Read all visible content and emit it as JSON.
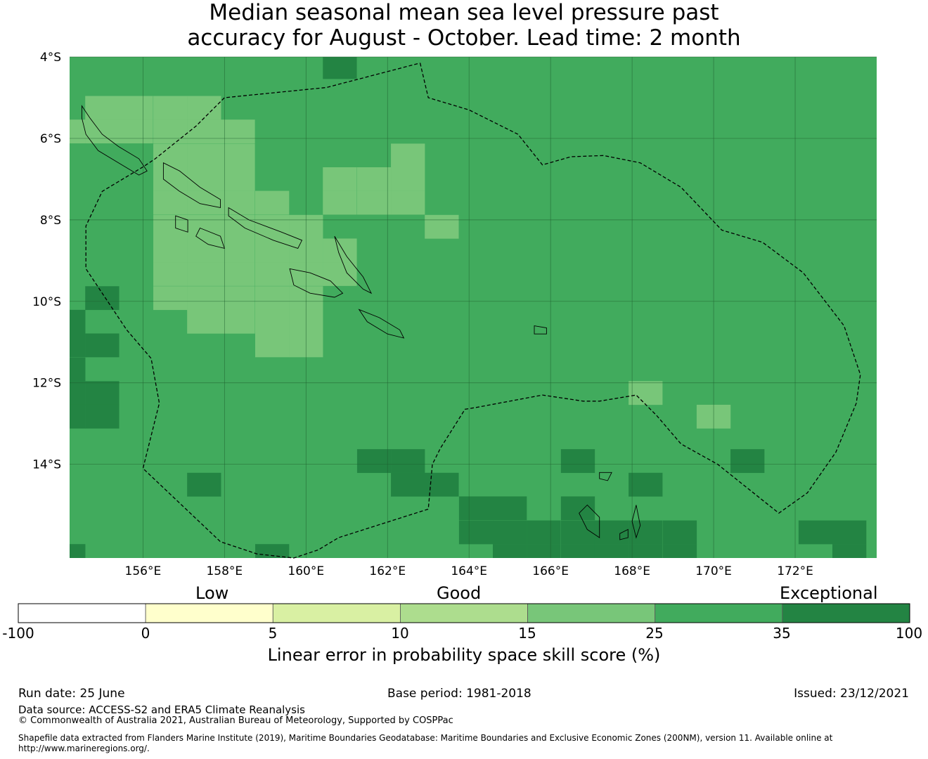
{
  "title": {
    "line1": "Median seasonal mean sea level pressure past",
    "line2": "accuracy for August - October. Lead time: 2 month"
  },
  "map": {
    "lat_labels": [
      "4°S",
      "6°S",
      "8°S",
      "10°S",
      "12°S",
      "14°S"
    ],
    "lon_labels": [
      "156°E",
      "158°E",
      "160°E",
      "162°E",
      "164°E",
      "166°E",
      "168°E",
      "170°E",
      "172°E"
    ],
    "lat_values": [
      -4,
      -6,
      -8,
      -10,
      -12,
      -14
    ],
    "lon_values": [
      156,
      158,
      160,
      162,
      164,
      166,
      168,
      170,
      172
    ],
    "extent": {
      "lon_min": 154.2,
      "lon_max": 174.0,
      "lat_max": -4.0,
      "lat_min": -16.3
    },
    "base_color": "#41ab5d",
    "category_colors": {
      "15-25": "#78c679",
      "25-35": "#41ab5d",
      "35-100": "#238443"
    },
    "cells_15_25": [
      [
        155,
        -5.25
      ],
      [
        155.83,
        -5.25
      ],
      [
        156.67,
        -5.25
      ],
      [
        157.5,
        -5.25
      ],
      [
        154.17,
        -5.83
      ],
      [
        155,
        -5.83
      ],
      [
        155.83,
        -5.83
      ],
      [
        156.67,
        -5.83
      ],
      [
        157.5,
        -5.83
      ],
      [
        158.33,
        -5.83
      ],
      [
        156.67,
        -6.42
      ],
      [
        157.5,
        -6.42
      ],
      [
        158.33,
        -6.42
      ],
      [
        162.5,
        -6.42
      ],
      [
        156.67,
        -7.0
      ],
      [
        157.5,
        -7.0
      ],
      [
        158.33,
        -7.0
      ],
      [
        160.83,
        -7.0
      ],
      [
        161.67,
        -7.0
      ],
      [
        162.5,
        -7.0
      ],
      [
        156.67,
        -7.58
      ],
      [
        157.5,
        -7.58
      ],
      [
        158.33,
        -7.58
      ],
      [
        159.17,
        -7.58
      ],
      [
        160.83,
        -7.58
      ],
      [
        161.67,
        -7.58
      ],
      [
        162.5,
        -7.58
      ],
      [
        156.67,
        -8.17
      ],
      [
        157.5,
        -8.17
      ],
      [
        158.33,
        -8.17
      ],
      [
        159.17,
        -8.17
      ],
      [
        160,
        -8.17
      ],
      [
        163.33,
        -8.17
      ],
      [
        156.67,
        -8.75
      ],
      [
        157.5,
        -8.75
      ],
      [
        158.33,
        -8.75
      ],
      [
        159.17,
        -8.75
      ],
      [
        160,
        -8.75
      ],
      [
        160.83,
        -8.75
      ],
      [
        156.67,
        -9.33
      ],
      [
        157.5,
        -9.33
      ],
      [
        158.33,
        -9.33
      ],
      [
        159.17,
        -9.33
      ],
      [
        160,
        -9.33
      ],
      [
        160.83,
        -9.33
      ],
      [
        156.67,
        -9.92
      ],
      [
        157.5,
        -9.92
      ],
      [
        158.33,
        -9.92
      ],
      [
        159.17,
        -9.92
      ],
      [
        160,
        -9.92
      ],
      [
        157.5,
        -10.5
      ],
      [
        158.33,
        -10.5
      ],
      [
        159.17,
        -10.5
      ],
      [
        160,
        -10.5
      ],
      [
        159.17,
        -11.08
      ],
      [
        160,
        -11.08
      ],
      [
        168.33,
        -12.25
      ],
      [
        170,
        -12.83
      ]
    ],
    "cells_35_100": [
      [
        160.83,
        -4.25
      ],
      [
        155,
        -9.92
      ],
      [
        154.17,
        -10.5
      ],
      [
        154.17,
        -11.08
      ],
      [
        155,
        -11.08
      ],
      [
        154.17,
        -11.67
      ],
      [
        154.17,
        -12.25
      ],
      [
        155,
        -12.25
      ],
      [
        154.17,
        -12.83
      ],
      [
        155,
        -12.83
      ],
      [
        161.67,
        -13.92
      ],
      [
        162.5,
        -13.92
      ],
      [
        162.5,
        -14.5
      ],
      [
        163.33,
        -14.5
      ],
      [
        157.5,
        -14.5
      ],
      [
        166.67,
        -13.92
      ],
      [
        168.33,
        -14.5
      ],
      [
        170.83,
        -13.92
      ],
      [
        164.17,
        -15.08
      ],
      [
        165,
        -15.08
      ],
      [
        166.67,
        -15.08
      ],
      [
        164.17,
        -15.67
      ],
      [
        165,
        -15.67
      ],
      [
        165.83,
        -15.67
      ],
      [
        166.67,
        -15.67
      ],
      [
        167.5,
        -15.67
      ],
      [
        168.33,
        -15.67
      ],
      [
        169.17,
        -15.67
      ],
      [
        172.5,
        -15.67
      ],
      [
        173.33,
        -15.67
      ],
      [
        165,
        -16.25
      ],
      [
        165.83,
        -16.25
      ],
      [
        166.67,
        -16.25
      ],
      [
        167.5,
        -16.25
      ],
      [
        168.33,
        -16.25
      ],
      [
        169.17,
        -16.25
      ],
      [
        173.33,
        -16.25
      ],
      [
        154.17,
        -16.25
      ],
      [
        159.17,
        -16.25
      ]
    ],
    "eez_boundary": [
      [
        162.8,
        -4.15
      ],
      [
        163.0,
        -5.0
      ],
      [
        164.0,
        -5.3
      ],
      [
        165.2,
        -5.9
      ],
      [
        165.8,
        -6.65
      ],
      [
        166.5,
        -6.45
      ],
      [
        167.3,
        -6.42
      ],
      [
        168.2,
        -6.6
      ],
      [
        169.2,
        -7.2
      ],
      [
        170.2,
        -8.25
      ],
      [
        171.2,
        -8.55
      ],
      [
        172.2,
        -9.3
      ],
      [
        173.2,
        -10.6
      ],
      [
        173.6,
        -11.8
      ],
      [
        173.5,
        -12.5
      ],
      [
        173.0,
        -13.7
      ],
      [
        172.3,
        -14.7
      ],
      [
        171.6,
        -15.2
      ],
      [
        170.1,
        -14.0
      ],
      [
        169.2,
        -13.5
      ],
      [
        168.6,
        -12.8
      ],
      [
        168.1,
        -12.3
      ],
      [
        167.2,
        -12.45
      ],
      [
        166.8,
        -12.45
      ],
      [
        165.8,
        -12.3
      ],
      [
        164.2,
        -12.6
      ],
      [
        163.9,
        -12.65
      ],
      [
        163.3,
        -13.6
      ],
      [
        163.1,
        -14.0
      ],
      [
        163.0,
        -15.1
      ],
      [
        160.8,
        -15.8
      ],
      [
        160.3,
        -16.1
      ],
      [
        159.7,
        -16.3
      ],
      [
        158.8,
        -16.2
      ],
      [
        157.9,
        -15.9
      ],
      [
        156.0,
        -14.1
      ],
      [
        156.4,
        -12.5
      ],
      [
        156.2,
        -11.4
      ],
      [
        155.6,
        -10.7
      ],
      [
        154.6,
        -9.2
      ],
      [
        154.6,
        -8.15
      ],
      [
        155.0,
        -7.3
      ],
      [
        156.0,
        -6.7
      ],
      [
        156.3,
        -6.5
      ],
      [
        157.3,
        -5.7
      ],
      [
        158.0,
        -5.0
      ],
      [
        160.5,
        -4.75
      ],
      [
        162.8,
        -4.15
      ]
    ],
    "islands": [
      [
        [
          154.5,
          -5.2
        ],
        [
          154.7,
          -5.5
        ],
        [
          155.0,
          -5.9
        ],
        [
          155.4,
          -6.2
        ],
        [
          155.9,
          -6.5
        ],
        [
          156.1,
          -6.8
        ],
        [
          155.9,
          -6.9
        ],
        [
          155.4,
          -6.6
        ],
        [
          154.9,
          -6.3
        ],
        [
          154.6,
          -5.9
        ],
        [
          154.5,
          -5.5
        ]
      ],
      [
        [
          156.5,
          -6.6
        ],
        [
          156.9,
          -6.8
        ],
        [
          157.4,
          -7.2
        ],
        [
          157.9,
          -7.5
        ],
        [
          157.9,
          -7.7
        ],
        [
          157.4,
          -7.6
        ],
        [
          156.9,
          -7.3
        ],
        [
          156.5,
          -7.0
        ]
      ],
      [
        [
          158.1,
          -7.7
        ],
        [
          158.6,
          -8.0
        ],
        [
          159.4,
          -8.3
        ],
        [
          159.9,
          -8.5
        ],
        [
          159.8,
          -8.7
        ],
        [
          159.2,
          -8.5
        ],
        [
          158.5,
          -8.2
        ],
        [
          158.1,
          -7.9
        ]
      ],
      [
        [
          160.7,
          -8.4
        ],
        [
          161.0,
          -8.9
        ],
        [
          161.4,
          -9.4
        ],
        [
          161.6,
          -9.8
        ],
        [
          161.4,
          -9.7
        ],
        [
          161.0,
          -9.3
        ],
        [
          160.8,
          -8.8
        ]
      ],
      [
        [
          159.6,
          -9.2
        ],
        [
          160.1,
          -9.3
        ],
        [
          160.6,
          -9.5
        ],
        [
          160.9,
          -9.8
        ],
        [
          160.7,
          -9.9
        ],
        [
          160.1,
          -9.8
        ],
        [
          159.7,
          -9.6
        ]
      ],
      [
        [
          161.3,
          -10.2
        ],
        [
          161.8,
          -10.4
        ],
        [
          162.3,
          -10.7
        ],
        [
          162.4,
          -10.9
        ],
        [
          162.0,
          -10.8
        ],
        [
          161.5,
          -10.5
        ]
      ],
      [
        [
          157.4,
          -8.2
        ],
        [
          157.9,
          -8.4
        ],
        [
          158.0,
          -8.7
        ],
        [
          157.6,
          -8.6
        ],
        [
          157.3,
          -8.4
        ]
      ],
      [
        [
          156.8,
          -7.9
        ],
        [
          157.1,
          -8.0
        ],
        [
          157.1,
          -8.3
        ],
        [
          156.8,
          -8.2
        ]
      ],
      [
        [
          165.6,
          -10.6
        ],
        [
          165.9,
          -10.65
        ],
        [
          165.9,
          -10.8
        ],
        [
          165.6,
          -10.8
        ]
      ],
      [
        [
          166.9,
          -15.0
        ],
        [
          167.2,
          -15.3
        ],
        [
          167.2,
          -15.8
        ],
        [
          166.9,
          -15.6
        ],
        [
          166.7,
          -15.2
        ]
      ],
      [
        [
          167.7,
          -15.7
        ],
        [
          167.9,
          -15.6
        ],
        [
          167.9,
          -15.8
        ],
        [
          167.7,
          -15.85
        ]
      ],
      [
        [
          168.1,
          -15.0
        ],
        [
          168.2,
          -15.5
        ],
        [
          168.1,
          -15.8
        ],
        [
          168.0,
          -15.4
        ]
      ],
      [
        [
          167.2,
          -14.2
        ],
        [
          167.5,
          -14.2
        ],
        [
          167.4,
          -14.4
        ],
        [
          167.2,
          -14.35
        ]
      ]
    ]
  },
  "colorbar": {
    "segments": [
      {
        "from": "-100",
        "to": "0",
        "color": "#ffffff"
      },
      {
        "from": "0",
        "to": "5",
        "color": "#ffffcc"
      },
      {
        "from": "5",
        "to": "10",
        "color": "#d9f0a3"
      },
      {
        "from": "10",
        "to": "15",
        "color": "#addd8e"
      },
      {
        "from": "15",
        "to": "25",
        "color": "#78c679"
      },
      {
        "from": "25",
        "to": "35",
        "color": "#41ab5d"
      },
      {
        "from": "35",
        "to": "100",
        "color": "#238443"
      }
    ],
    "ticks": [
      "-100",
      "0",
      "5",
      "10",
      "15",
      "25",
      "35",
      "100"
    ],
    "category_low": "Low",
    "category_good": "Good",
    "category_exceptional": "Exceptional",
    "title": "Linear error in probability space skill score (%)"
  },
  "footer": {
    "run_date": "Run date: 25 June",
    "base_period": "Base period: 1981-2018",
    "issued": "Issued: 23/12/2021",
    "data_source": "Data source: ACCESS-S2 and ERA5 Climate Reanalysis",
    "copyright": "© Commonwealth of Australia 2021, Australian Bureau of Meteorology, Supported by COSPPac",
    "shapefile_line1": "Shapefile data extracted from Flanders Marine Institute (2019), Maritime Boundaries Geodatabase: Maritime Boundaries and Exclusive Economic Zones (200NM), version 11. Available online at",
    "shapefile_line2": "http://www.marineregions.org/."
  }
}
